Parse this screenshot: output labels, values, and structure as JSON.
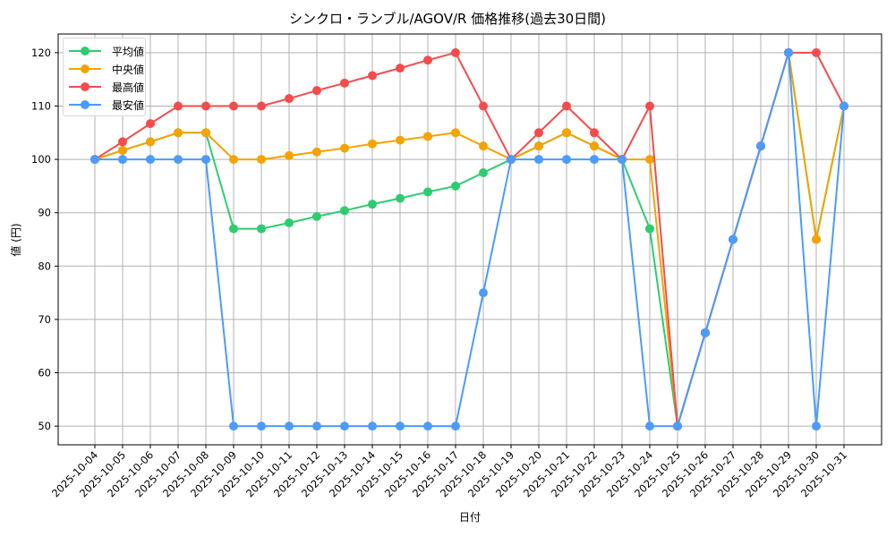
{
  "chart_data": {
    "type": "line",
    "title": "シンクロ・ランブル/AGOV/R 価格推移(過去30日間)",
    "xlabel": "日付",
    "ylabel": "値 (円)",
    "ylim": [
      46.5,
      123.5
    ],
    "yticks": [
      50,
      60,
      70,
      80,
      90,
      100,
      110,
      120
    ],
    "grid": true,
    "legend_position": "upper left",
    "x": [
      "2025-10-04",
      "2025-10-05",
      "2025-10-06",
      "2025-10-07",
      "2025-10-08",
      "2025-10-09",
      "2025-10-10",
      "2025-10-11",
      "2025-10-12",
      "2025-10-13",
      "2025-10-14",
      "2025-10-15",
      "2025-10-16",
      "2025-10-17",
      "2025-10-18",
      "2025-10-19",
      "2025-10-20",
      "2025-10-21",
      "2025-10-22",
      "2025-10-23",
      "2025-10-24",
      "2025-10-25",
      "2025-10-26",
      "2025-10-27",
      "2025-10-28",
      "2025-10-29",
      "2025-10-30",
      "2025-10-31"
    ],
    "series": [
      {
        "name": "平均値",
        "color": "#2ecc71",
        "values": [
          100,
          101.7,
          103.3,
          105,
          105,
          87,
          87,
          88.1,
          89.3,
          90.4,
          91.6,
          92.7,
          93.9,
          95,
          97.5,
          100,
          102.5,
          105,
          102.5,
          100,
          87,
          50,
          67.5,
          85,
          102.5,
          120,
          85,
          110
        ]
      },
      {
        "name": "中央値",
        "color": "#f5a300",
        "values": [
          100,
          101.7,
          103.3,
          105,
          105,
          100,
          100,
          100.7,
          101.4,
          102.1,
          102.9,
          103.6,
          104.3,
          105,
          102.5,
          100,
          102.5,
          105,
          102.5,
          100,
          100,
          50,
          67.5,
          85,
          102.5,
          120,
          85,
          110
        ]
      },
      {
        "name": "最高値",
        "color": "#f44c4c",
        "values": [
          100,
          103.3,
          106.7,
          110,
          110,
          110,
          110,
          111.4,
          112.9,
          114.3,
          115.7,
          117.1,
          118.6,
          120,
          110,
          100,
          105,
          110,
          105,
          100,
          110,
          50,
          67.5,
          85,
          102.5,
          120,
          120,
          110
        ]
      },
      {
        "name": "最安値",
        "color": "#4c9bff",
        "values": [
          100,
          100,
          100,
          100,
          100,
          50,
          50,
          50,
          50,
          50,
          50,
          50,
          50,
          50,
          75,
          100,
          100,
          100,
          100,
          100,
          50,
          50,
          67.5,
          85,
          102.5,
          120,
          50,
          110
        ]
      }
    ]
  },
  "legend": {
    "items": [
      {
        "label": "平均値",
        "color": "#2ecc71"
      },
      {
        "label": "中央値",
        "color": "#f5a300"
      },
      {
        "label": "最高値",
        "color": "#f44c4c"
      },
      {
        "label": "最安値",
        "color": "#4c9bff"
      }
    ]
  }
}
